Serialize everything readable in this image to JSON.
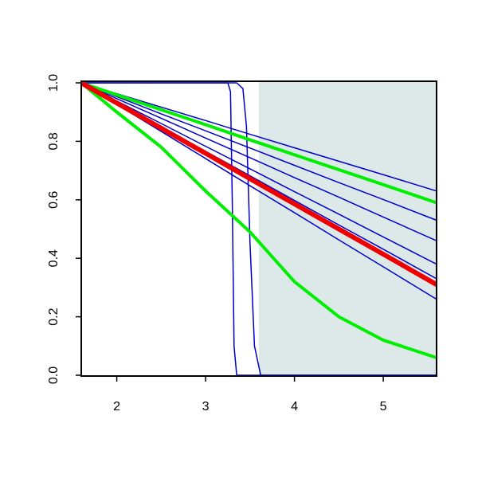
{
  "chart_data": {
    "type": "line",
    "xlim": [
      1.6,
      5.6
    ],
    "ylim": [
      0,
      1
    ],
    "xticks": [
      2,
      3,
      4,
      5
    ],
    "yticks": [
      {
        "value": 0,
        "label": "0.0"
      },
      0.2,
      0.4,
      0.6,
      0.8,
      {
        "value": 1,
        "label": "1.0"
      }
    ],
    "shaded_region": {
      "xlim": [
        3.6,
        5.6
      ],
      "color": "#dde9e9"
    },
    "series": [
      {
        "color": "#0000cc",
        "line_width": 1.5,
        "x": [
          1.6,
          2,
          2.5,
          3,
          3.5,
          4,
          4.5,
          5,
          5.6
        ],
        "values": [
          1,
          0.963,
          0.917,
          0.871,
          0.824,
          0.778,
          0.732,
          0.686,
          0.63
        ]
      },
      {
        "color": "#0000cc",
        "line_width": 1.5,
        "x": [
          1.6,
          2,
          2.5,
          3,
          3.5,
          4,
          4.5,
          5,
          5.6
        ],
        "values": [
          1,
          0.953,
          0.894,
          0.836,
          0.777,
          0.718,
          0.659,
          0.601,
          0.53
        ]
      },
      {
        "color": "#0000cc",
        "line_width": 1.5,
        "x": [
          1.6,
          2,
          2.5,
          3,
          3.5,
          4,
          4.5,
          5,
          5.6
        ],
        "values": [
          1,
          0.946,
          0.879,
          0.811,
          0.744,
          0.676,
          0.609,
          0.541,
          0.46
        ]
      },
      {
        "color": "#0000cc",
        "line_width": 1.5,
        "x": [
          1.6,
          2,
          2.5,
          3,
          3.5,
          4,
          4.5,
          5,
          5.6
        ],
        "values": [
          1,
          0.938,
          0.861,
          0.783,
          0.706,
          0.628,
          0.551,
          0.473,
          0.38
        ]
      },
      {
        "color": "#0000cc",
        "line_width": 1.5,
        "x": [
          1.6,
          2,
          2.5,
          3,
          3.5,
          4,
          4.5,
          5,
          5.6
        ],
        "values": [
          1,
          0.933,
          0.849,
          0.766,
          0.682,
          0.598,
          0.514,
          0.431,
          0.33
        ]
      },
      {
        "color": "#0000cc",
        "line_width": 1.5,
        "x": [
          1.6,
          2,
          2.5,
          3,
          3.5,
          4,
          4.5,
          5,
          5.6
        ],
        "values": [
          1,
          0.926,
          0.834,
          0.741,
          0.648,
          0.556,
          0.463,
          0.371,
          0.26
        ]
      },
      {
        "color": "#0000cc",
        "line_width": 1.5,
        "x": [
          1.6,
          3.25,
          3.28,
          3.3,
          3.32,
          3.35,
          5.6
        ],
        "values": [
          1,
          1,
          0.97,
          0.6,
          0.1,
          0,
          0
        ]
      },
      {
        "color": "#0000cc",
        "line_width": 1.5,
        "x": [
          1.6,
          3.35,
          3.42,
          3.46,
          3.5,
          3.55,
          3.62,
          5.6
        ],
        "values": [
          1,
          1,
          0.98,
          0.85,
          0.45,
          0.1,
          0,
          0
        ]
      },
      {
        "color": "#00ee00",
        "line_width": 4,
        "x": [
          1.6,
          2,
          2.5,
          3,
          3.5,
          4,
          4.5,
          5,
          5.6
        ],
        "values": [
          1,
          0.959,
          0.908,
          0.857,
          0.805,
          0.754,
          0.703,
          0.652,
          0.59
        ]
      },
      {
        "color": "#00ee00",
        "line_width": 4,
        "x": [
          1.6,
          2,
          2.5,
          3,
          3.5,
          4,
          4.5,
          5,
          5.6
        ],
        "values": [
          1,
          0.9,
          0.78,
          0.63,
          0.49,
          0.32,
          0.2,
          0.12,
          0.06
        ]
      },
      {
        "color": "#ee0000",
        "line_width": 6,
        "x": [
          1.6,
          2,
          2.5,
          3,
          3.5,
          4,
          4.5,
          5,
          5.6
        ],
        "values": [
          1,
          0.931,
          0.845,
          0.759,
          0.672,
          0.586,
          0.5,
          0.414,
          0.31
        ]
      }
    ]
  }
}
